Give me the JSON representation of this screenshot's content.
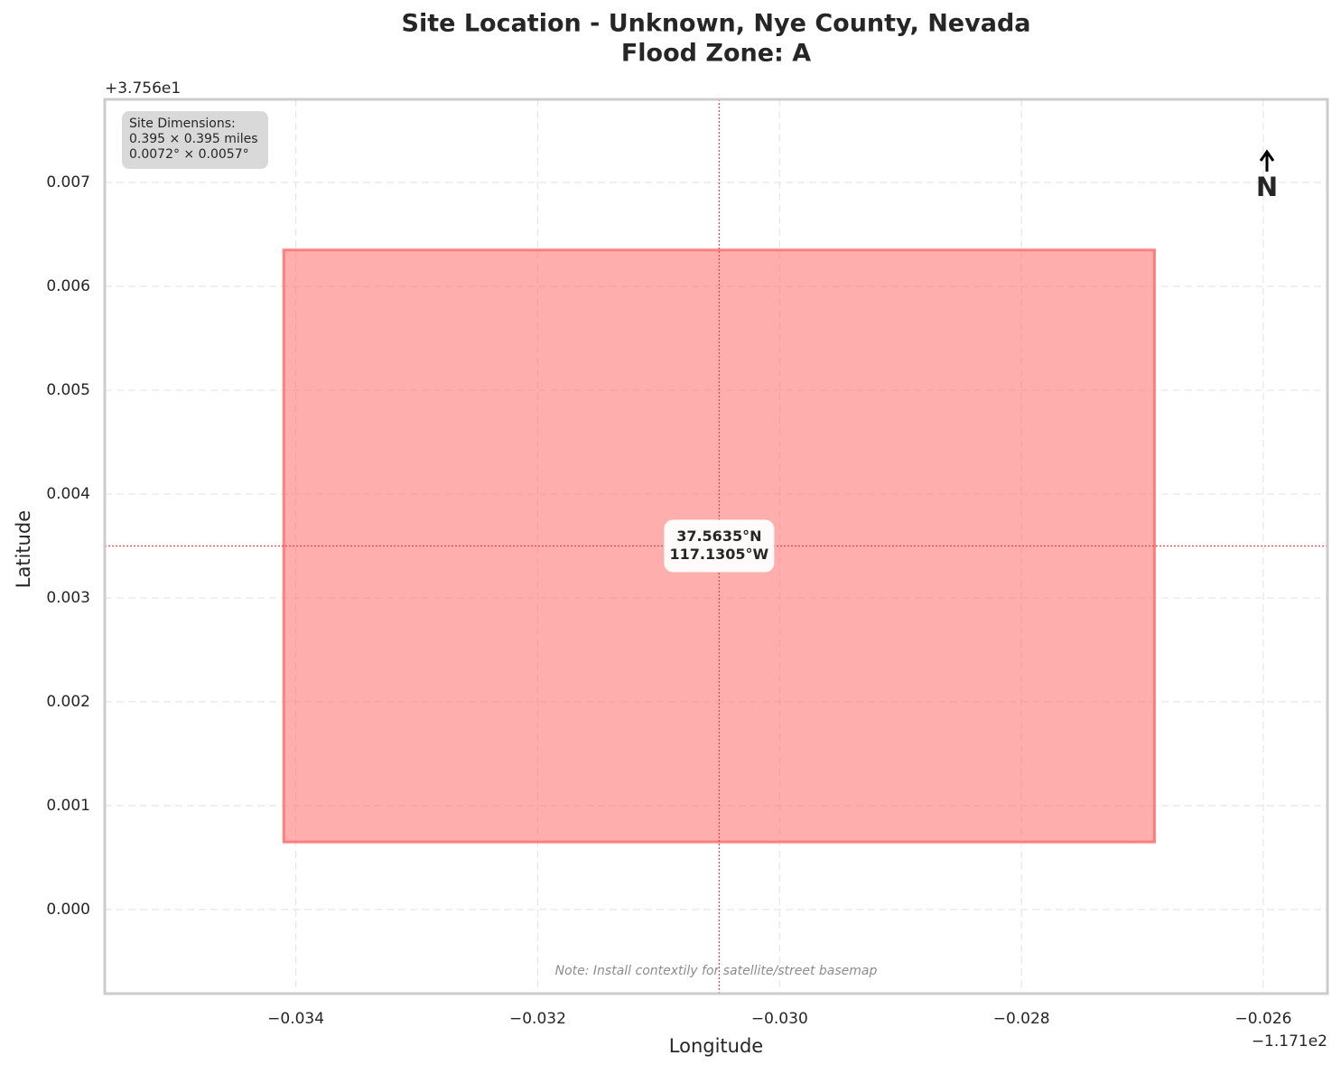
{
  "chart_data": {
    "type": "site",
    "title": [
      "Site Location - Unknown, Nye County, Nevada",
      "Flood Zone: A"
    ],
    "xlabel": "Longitude",
    "ylabel": "Latitude",
    "x_offset": "−1.171e2",
    "y_offset": "+3.756e1",
    "xlim": [
      -0.03558,
      -0.02547
    ],
    "ylim": [
      -0.00081,
      0.0078
    ],
    "xticks": [
      {
        "value": -0.034,
        "label": "−0.034"
      },
      {
        "value": -0.032,
        "label": "−0.032"
      },
      {
        "value": -0.03,
        "label": "−0.030"
      },
      {
        "value": -0.028,
        "label": "−0.028"
      },
      {
        "value": -0.026,
        "label": "−0.026"
      }
    ],
    "yticks": [
      {
        "value": 0,
        "label": "0.000"
      },
      0.001,
      0.002,
      0.003,
      0.004,
      0.005,
      0.006,
      0.007
    ],
    "grid": true,
    "site": {
      "xmin": -0.0341,
      "xmax": -0.0269,
      "ymin": 0.00065,
      "ymax": 0.00635,
      "color": "#ff6b6b"
    },
    "center": {
      "x": -0.0305,
      "y": 0.0035,
      "labels": [
        "37.5635°N",
        "117.1305°W"
      ],
      "color": "#e05050"
    },
    "dimensions": [
      "Site Dimensions:",
      "0.395 × 0.395 miles",
      "0.0072° × 0.0057°"
    ],
    "north": "N",
    "note": "Note: Install contextily for satellite/street basemap"
  }
}
